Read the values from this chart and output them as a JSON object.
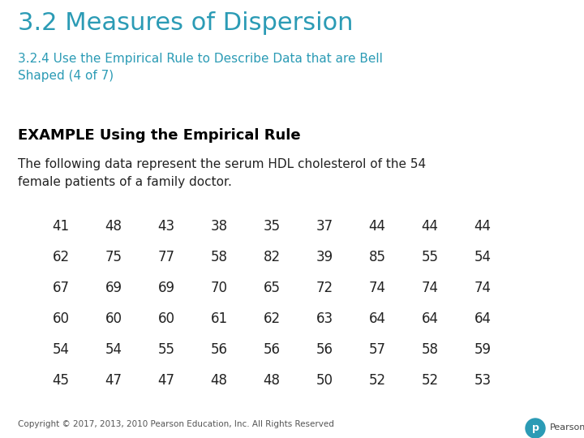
{
  "title": "3.2 Measures of Dispersion",
  "subtitle": "3.2.4 Use the Empirical Rule to Describe Data that are Bell\nShaped (4 of 7)",
  "section_header": "EXAMPLE Using the Empirical Rule",
  "body_text": "The following data represent the serum HDL cholesterol of the 54\nfemale patients of a family doctor.",
  "title_color": "#2B9BB5",
  "subtitle_color": "#2B9BB5",
  "header_color": "#000000",
  "body_color": "#222222",
  "background_color": "#FFFFFF",
  "footer_text": "Copyright © 2017, 2013, 2010 Pearson Education, Inc. All Rights Reserved",
  "pearson_color": "#2B9BB5",
  "data_table": [
    [
      41,
      48,
      43,
      38,
      35,
      37,
      44,
      44,
      44
    ],
    [
      62,
      75,
      77,
      58,
      82,
      39,
      85,
      55,
      54
    ],
    [
      67,
      69,
      69,
      70,
      65,
      72,
      74,
      74,
      74
    ],
    [
      60,
      60,
      60,
      61,
      62,
      63,
      64,
      64,
      64
    ],
    [
      54,
      54,
      55,
      56,
      56,
      56,
      57,
      58,
      59
    ],
    [
      45,
      47,
      47,
      48,
      48,
      50,
      52,
      52,
      53
    ]
  ],
  "title_fontsize": 22,
  "subtitle_fontsize": 11,
  "header_fontsize": 13,
  "body_fontsize": 11,
  "table_fontsize": 12,
  "footer_fontsize": 7.5
}
